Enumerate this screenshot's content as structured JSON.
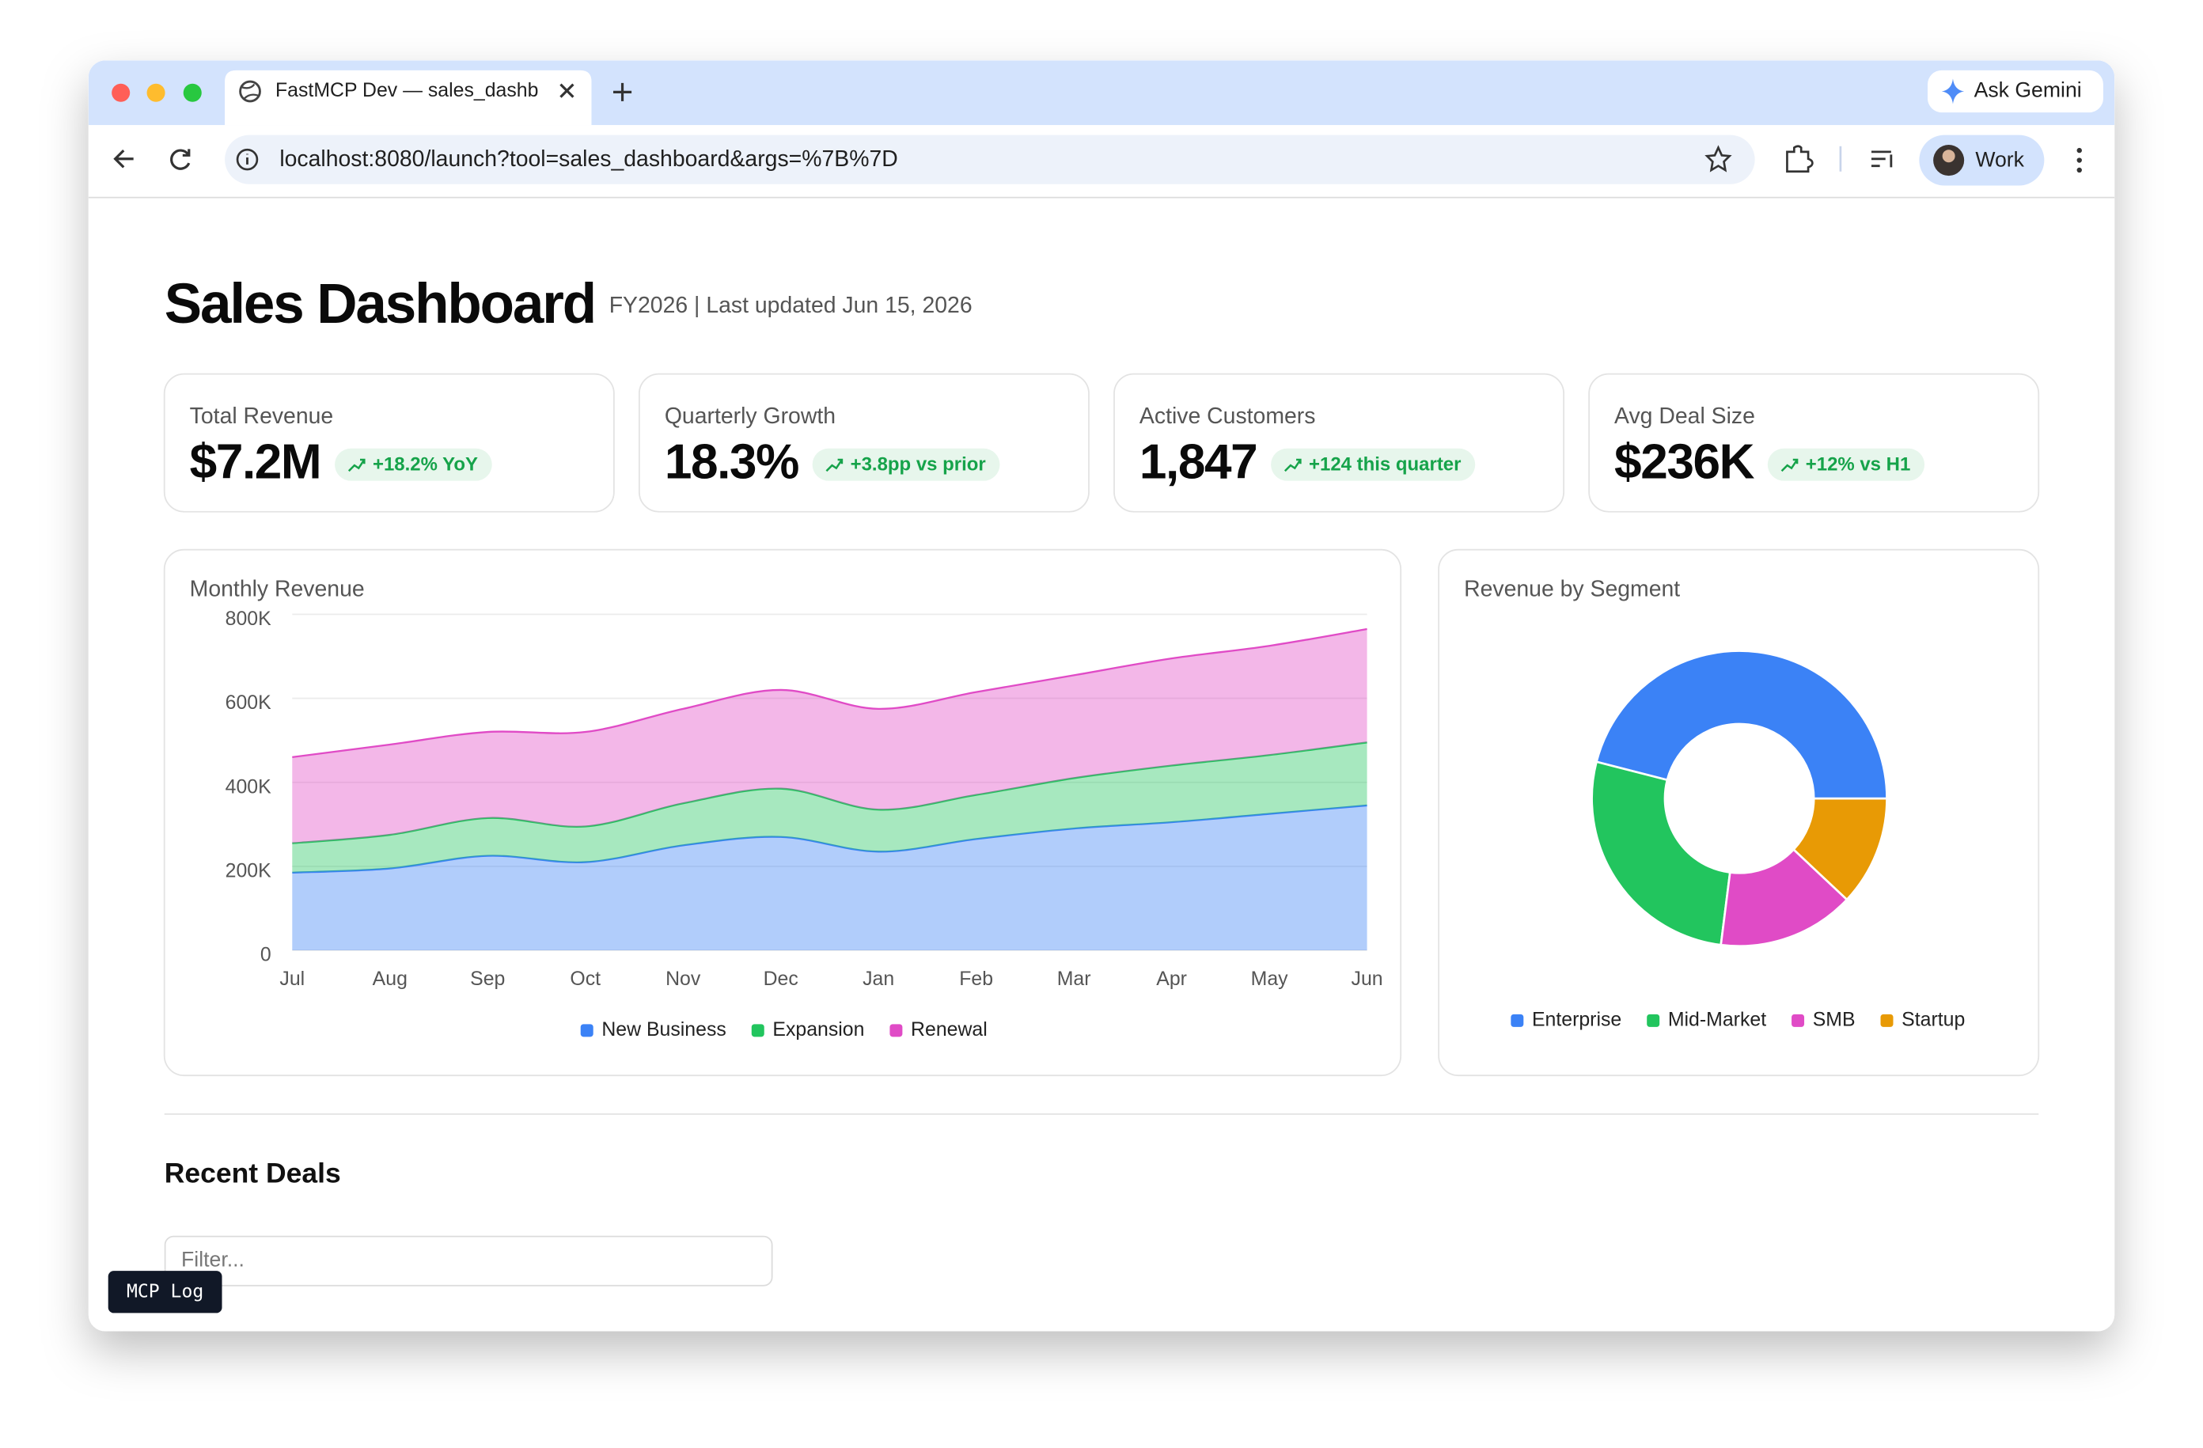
{
  "browser": {
    "tab_title": "FastMCP Dev — sales_dashb",
    "url": "localhost:8080/launch?tool=sales_dashboard&args=%7B%7D",
    "ask_gemini": "Ask Gemini",
    "profile": "Work"
  },
  "header": {
    "title": "Sales Dashboard",
    "subtitle": "FY2026 | Last updated Jun 15, 2026"
  },
  "kpis": [
    {
      "label": "Total Revenue",
      "value": "$7.2M",
      "delta": "+18.2% YoY"
    },
    {
      "label": "Quarterly Growth",
      "value": "18.3%",
      "delta": "+3.8pp vs prior"
    },
    {
      "label": "Active Customers",
      "value": "1,847",
      "delta": "+124 this quarter"
    },
    {
      "label": "Avg Deal Size",
      "value": "$236K",
      "delta": "+12% vs H1"
    }
  ],
  "chart_data": [
    {
      "type": "area",
      "stacked": true,
      "title": "Monthly Revenue",
      "categories": [
        "Jul",
        "Aug",
        "Sep",
        "Oct",
        "Nov",
        "Dec",
        "Jan",
        "Feb",
        "Mar",
        "Apr",
        "May",
        "Jun"
      ],
      "series": [
        {
          "name": "New Business",
          "color": "#3b82f6",
          "values": [
            185000,
            195000,
            225000,
            210000,
            250000,
            270000,
            235000,
            265000,
            290000,
            305000,
            325000,
            345000
          ]
        },
        {
          "name": "Expansion",
          "color": "#22c55e",
          "values": [
            70000,
            80000,
            90000,
            85000,
            100000,
            115000,
            100000,
            105000,
            120000,
            135000,
            140000,
            150000
          ]
        },
        {
          "name": "Renewal",
          "color": "#e04bc6",
          "values": [
            205000,
            215000,
            205000,
            225000,
            225000,
            235000,
            240000,
            245000,
            245000,
            255000,
            260000,
            270000
          ]
        }
      ],
      "ylim": [
        0,
        800000
      ],
      "yticks": [
        0,
        {
          "value": 200000,
          "label": "200K"
        },
        {
          "value": 400000,
          "label": "400K"
        },
        {
          "value": 600000,
          "label": "600K"
        },
        {
          "value": 800000,
          "label": "800K"
        }
      ],
      "grid": true,
      "legend": "bottom"
    },
    {
      "type": "pie",
      "donut": true,
      "title": "Revenue by Segment",
      "categories": [
        "Enterprise",
        "Mid-Market",
        "SMB",
        "Startup"
      ],
      "values": [
        46,
        27,
        15,
        12
      ],
      "colors": [
        "#3b82f6",
        "#22c55e",
        "#e04bc6",
        "#e89a05"
      ],
      "legend": "bottom"
    }
  ],
  "recent_deals": {
    "title": "Recent Deals",
    "filter_placeholder": "Filter..."
  },
  "mcp_log": "MCP Log"
}
